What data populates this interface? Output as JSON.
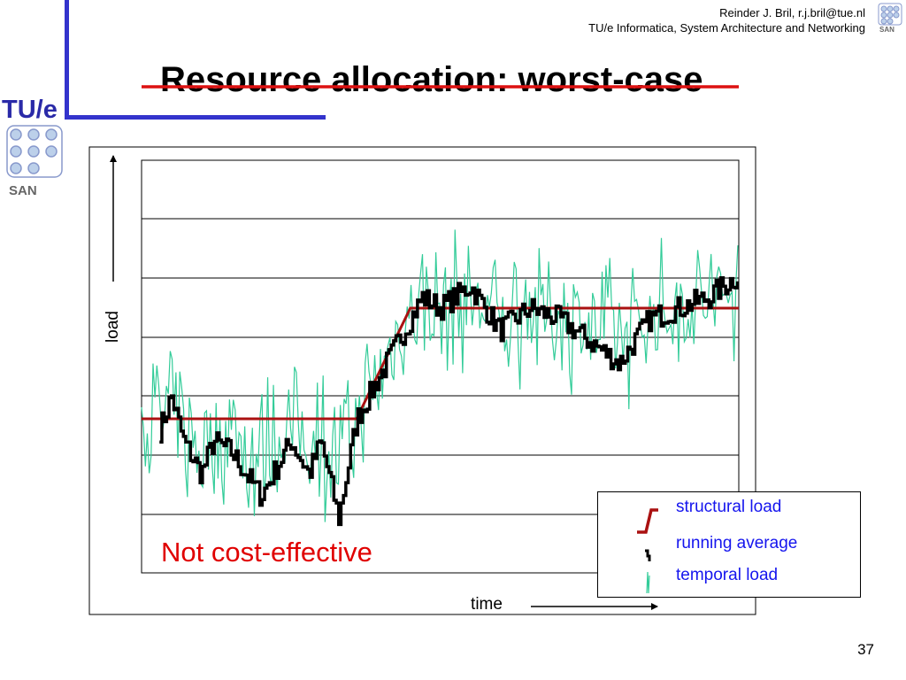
{
  "header": {
    "author": "Reinder J. Bril, r.j.bril@tue.nl",
    "affiliation": "TU/e Informatica, System Architecture and Networking"
  },
  "logos": {
    "tue": "TU/e",
    "san": "SAN"
  },
  "title": "Resource allocation: worst-case",
  "page_number": "37",
  "annotation": "Not cost-effective",
  "colors": {
    "accent": "#3333cc",
    "worst_case_line": "#dd1111",
    "structural": "#aa1111",
    "running_average": "#000000",
    "temporal": "#33cc99",
    "legend_text": "#1515ee",
    "annotation": "#e00000"
  },
  "chart_data": {
    "type": "line",
    "xlabel": "time",
    "ylabel": "load",
    "grid": true,
    "legend_position": "bottom-right",
    "legend": [
      {
        "label": "structural load",
        "icon": "structural-load-icon"
      },
      {
        "label": "running average",
        "icon": "running-average-icon"
      },
      {
        "label": "temporal load",
        "icon": "temporal-load-icon"
      }
    ],
    "worst_case_level": 3.0,
    "structural": {
      "x": [
        0,
        0.36,
        0.45,
        1
      ],
      "y": [
        0,
        0,
        1.0,
        1.0
      ]
    },
    "running_average_keypoints": {
      "x": [
        0.03,
        0.05,
        0.07,
        0.1,
        0.12,
        0.15,
        0.2,
        0.25,
        0.28,
        0.3,
        0.33,
        0.36,
        0.4,
        0.44,
        0.47,
        0.5,
        0.55,
        0.6,
        0.65,
        0.7,
        0.75,
        0.8,
        0.85,
        0.9,
        0.95,
        1.0
      ],
      "y": [
        -0.1,
        0.2,
        -0.2,
        -0.5,
        -0.2,
        -0.3,
        -0.7,
        -0.2,
        -0.5,
        -0.2,
        -0.9,
        0.0,
        0.4,
        0.8,
        1.1,
        1.0,
        1.2,
        0.8,
        1.0,
        0.9,
        0.7,
        0.5,
        0.9,
        1.0,
        1.1,
        1.3
      ]
    },
    "temporal_amplitude": 0.55
  }
}
